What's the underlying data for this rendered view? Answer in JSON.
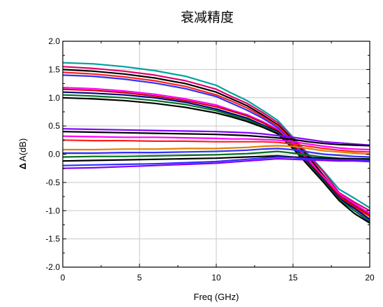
{
  "chart_data": {
    "type": "line",
    "title": "衰减精度",
    "xlabel": "Freq (GHz)",
    "ylabel": "Δ A(dB)",
    "ylabel_symbol": "Δ",
    "ylabel_text": "A(dB)",
    "xlim": [
      0,
      20
    ],
    "ylim": [
      -2.0,
      2.0
    ],
    "x_ticks": [
      0,
      5,
      10,
      15,
      20
    ],
    "y_ticks": [
      -2.0,
      -1.5,
      -1.0,
      -0.5,
      0.0,
      0.5,
      1.0,
      1.5,
      2.0
    ],
    "x_tick_labels": [
      "0",
      "5",
      "10",
      "15",
      "20"
    ],
    "y_tick_labels": [
      "-2.0",
      "-1.5",
      "-1.0",
      "-0.5",
      "0.0",
      "0.5",
      "1.0",
      "1.5",
      "2.0"
    ],
    "grid": true,
    "x": [
      0,
      2,
      4,
      6,
      8,
      10,
      11,
      12,
      13,
      14,
      15,
      16,
      17,
      18,
      19,
      20
    ],
    "series": [
      {
        "color": "#00a0a0",
        "values": [
          1.62,
          1.6,
          1.55,
          1.48,
          1.38,
          1.22,
          1.08,
          0.95,
          0.78,
          0.6,
          0.3,
          0.0,
          -0.3,
          -0.62,
          -0.78,
          -0.95
        ]
      },
      {
        "color": "#e0006a",
        "values": [
          1.55,
          1.52,
          1.47,
          1.4,
          1.3,
          1.15,
          1.02,
          0.9,
          0.74,
          0.56,
          0.28,
          -0.02,
          -0.32,
          -0.68,
          -0.85,
          -1.0
        ]
      },
      {
        "color": "#000000",
        "values": [
          1.5,
          1.47,
          1.42,
          1.35,
          1.25,
          1.1,
          0.98,
          0.86,
          0.7,
          0.52,
          0.25,
          -0.05,
          -0.38,
          -0.72,
          -0.9,
          -1.05
        ]
      },
      {
        "color": "#ff2020",
        "values": [
          1.45,
          1.42,
          1.37,
          1.3,
          1.2,
          1.05,
          0.94,
          0.82,
          0.67,
          0.5,
          0.22,
          -0.08,
          -0.42,
          -0.75,
          -0.95,
          -1.1
        ]
      },
      {
        "color": "#3030ff",
        "values": [
          1.4,
          1.38,
          1.33,
          1.26,
          1.16,
          1.02,
          0.9,
          0.78,
          0.64,
          0.47,
          0.2,
          -0.1,
          -0.45,
          -0.78,
          -1.0,
          -1.2
        ]
      },
      {
        "color": "#ff00ff",
        "values": [
          1.18,
          1.16,
          1.12,
          1.06,
          0.98,
          0.87,
          0.78,
          0.7,
          0.58,
          0.44,
          0.18,
          -0.12,
          -0.4,
          -0.7,
          -0.88,
          -1.05
        ]
      },
      {
        "color": "#cc0000",
        "values": [
          1.15,
          1.13,
          1.09,
          1.03,
          0.95,
          0.84,
          0.76,
          0.68,
          0.56,
          0.42,
          0.16,
          -0.14,
          -0.44,
          -0.74,
          -0.92,
          -1.08
        ]
      },
      {
        "color": "#000080",
        "values": [
          1.1,
          1.08,
          1.05,
          1.0,
          0.92,
          0.8,
          0.72,
          0.64,
          0.52,
          0.4,
          0.14,
          -0.16,
          -0.46,
          -0.78,
          -0.96,
          -1.15
        ]
      },
      {
        "color": "#007020",
        "values": [
          1.05,
          1.03,
          1.0,
          0.95,
          0.88,
          0.77,
          0.69,
          0.61,
          0.5,
          0.38,
          0.12,
          -0.18,
          -0.48,
          -0.8,
          -1.0,
          -1.18
        ]
      },
      {
        "color": "#000000",
        "values": [
          1.0,
          0.98,
          0.95,
          0.9,
          0.83,
          0.73,
          0.66,
          0.58,
          0.48,
          0.36,
          0.1,
          -0.2,
          -0.5,
          -0.82,
          -1.05,
          -1.22
        ]
      },
      {
        "color": "#8000ff",
        "values": [
          0.45,
          0.44,
          0.43,
          0.42,
          0.41,
          0.4,
          0.39,
          0.38,
          0.36,
          0.33,
          0.3,
          0.26,
          0.22,
          0.2,
          0.18,
          0.16
        ]
      },
      {
        "color": "#000000",
        "values": [
          0.4,
          0.39,
          0.38,
          0.37,
          0.36,
          0.35,
          0.34,
          0.33,
          0.31,
          0.29,
          0.26,
          0.22,
          0.19,
          0.17,
          0.16,
          0.15
        ]
      },
      {
        "color": "#ff00ff",
        "values": [
          0.32,
          0.31,
          0.3,
          0.3,
          0.29,
          0.28,
          0.27,
          0.27,
          0.26,
          0.25,
          0.22,
          0.18,
          0.14,
          0.11,
          0.09,
          0.08
        ]
      },
      {
        "color": "#ff2020",
        "values": [
          0.25,
          0.24,
          0.24,
          0.23,
          0.23,
          0.22,
          0.22,
          0.22,
          0.22,
          0.21,
          0.18,
          0.14,
          0.1,
          0.07,
          0.05,
          0.04
        ]
      },
      {
        "color": "#e08000",
        "values": [
          0.08,
          0.08,
          0.09,
          0.09,
          0.1,
          0.1,
          0.11,
          0.12,
          0.14,
          0.15,
          0.14,
          0.1,
          0.06,
          0.04,
          0.02,
          0.0
        ]
      },
      {
        "color": "#3030ff",
        "values": [
          0.02,
          0.02,
          0.03,
          0.03,
          0.04,
          0.05,
          0.06,
          0.07,
          0.09,
          0.1,
          0.08,
          0.04,
          0.0,
          -0.02,
          -0.04,
          -0.05
        ]
      },
      {
        "color": "#007020",
        "values": [
          -0.05,
          -0.04,
          -0.04,
          -0.03,
          -0.02,
          -0.01,
          0.0,
          0.01,
          0.03,
          0.05,
          0.02,
          -0.02,
          -0.05,
          -0.07,
          -0.08,
          -0.08
        ]
      },
      {
        "color": "#000000",
        "values": [
          -0.12,
          -0.11,
          -0.1,
          -0.09,
          -0.08,
          -0.07,
          -0.06,
          -0.05,
          -0.04,
          -0.03,
          -0.05,
          -0.06,
          -0.07,
          -0.08,
          -0.08,
          -0.09
        ]
      },
      {
        "color": "#3030ff",
        "values": [
          -0.2,
          -0.19,
          -0.18,
          -0.17,
          -0.15,
          -0.13,
          -0.11,
          -0.09,
          -0.07,
          -0.05,
          -0.06,
          -0.08,
          -0.09,
          -0.1,
          -0.1,
          -0.11
        ]
      },
      {
        "color": "#8000ff",
        "values": [
          -0.25,
          -0.24,
          -0.22,
          -0.2,
          -0.18,
          -0.16,
          -0.14,
          -0.12,
          -0.1,
          -0.08,
          -0.09,
          -0.1,
          -0.11,
          -0.12,
          -0.12,
          -0.13
        ]
      }
    ]
  }
}
